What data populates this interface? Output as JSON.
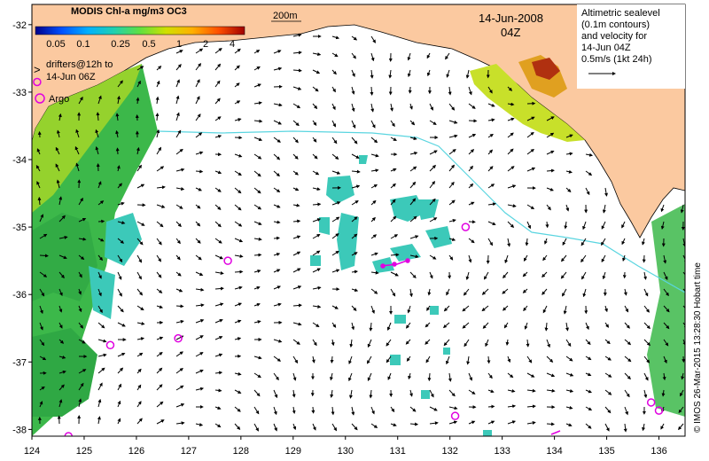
{
  "colorbar": {
    "title": "MODIS Chl-a mg/m3 OC3",
    "tick_labels": [
      "0.05",
      "0.1",
      "0.25",
      "0.5",
      "1",
      "2",
      "4"
    ],
    "colors": [
      "#00008b",
      "#0050ff",
      "#00b0ff",
      "#20d0b0",
      "#60e040",
      "#d0e000",
      "#ffb000",
      "#ff5000",
      "#a00000"
    ]
  },
  "depth_label": "200m",
  "date": "14-Jun-2008",
  "time": "04Z",
  "legend_text": [
    "Altimetric sealevel",
    "(0.1m contours)",
    "and velocity for",
    "14-Jun 04Z",
    "0.5m/s (1kt 24h)"
  ],
  "drifters_label": [
    "drifters@12h to",
    "14-Jun 06Z"
  ],
  "argo_label": "Argo",
  "credit": "© IMOS 26-Mar-2015 13:28:30 Hobart time",
  "axes": {
    "x_ticks": [
      "124",
      "125",
      "126",
      "127",
      "128",
      "129",
      "130",
      "131",
      "132",
      "133",
      "134",
      "135",
      "136"
    ],
    "y_ticks": [
      "-32",
      "-33",
      "-34",
      "-35",
      "-36",
      "-37",
      "-38"
    ],
    "lon_range": [
      124,
      136.5
    ],
    "lat_range": [
      -38.1,
      -31.7
    ]
  },
  "argo_floats": [
    {
      "lon": 124.1,
      "lat": -32.85
    },
    {
      "lon": 127.75,
      "lat": -35.5
    },
    {
      "lon": 132.3,
      "lat": -35.0
    },
    {
      "lon": 126.8,
      "lat": -36.65
    },
    {
      "lon": 125.5,
      "lat": -36.75
    },
    {
      "lon": 132.1,
      "lat": -37.8
    },
    {
      "lon": 135.85,
      "lat": -37.6
    },
    {
      "lon": 136.0,
      "lat": -37.72
    },
    {
      "lon": 124.7,
      "lat": -38.1
    }
  ],
  "colors": {
    "land": "#fbc9a0",
    "chl_green": "#3cb84a",
    "chl_cyan": "#3cc9b9",
    "argo": "#e000e0",
    "contour": "#5ad5e0"
  }
}
